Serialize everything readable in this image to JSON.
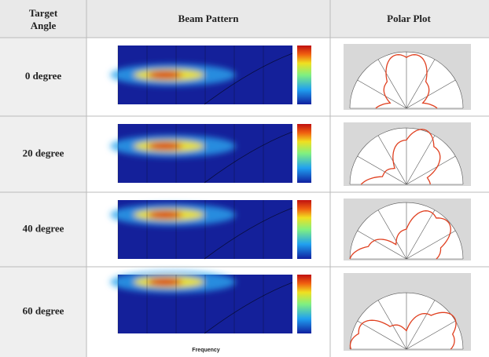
{
  "table": {
    "headers": [
      "Target Angle",
      "Beam Pattern",
      "Polar Plot"
    ],
    "rows": [
      "0 degree",
      "20 degree",
      "40 degree",
      "60 degree"
    ],
    "x_axis_label": "Frequency"
  }
}
